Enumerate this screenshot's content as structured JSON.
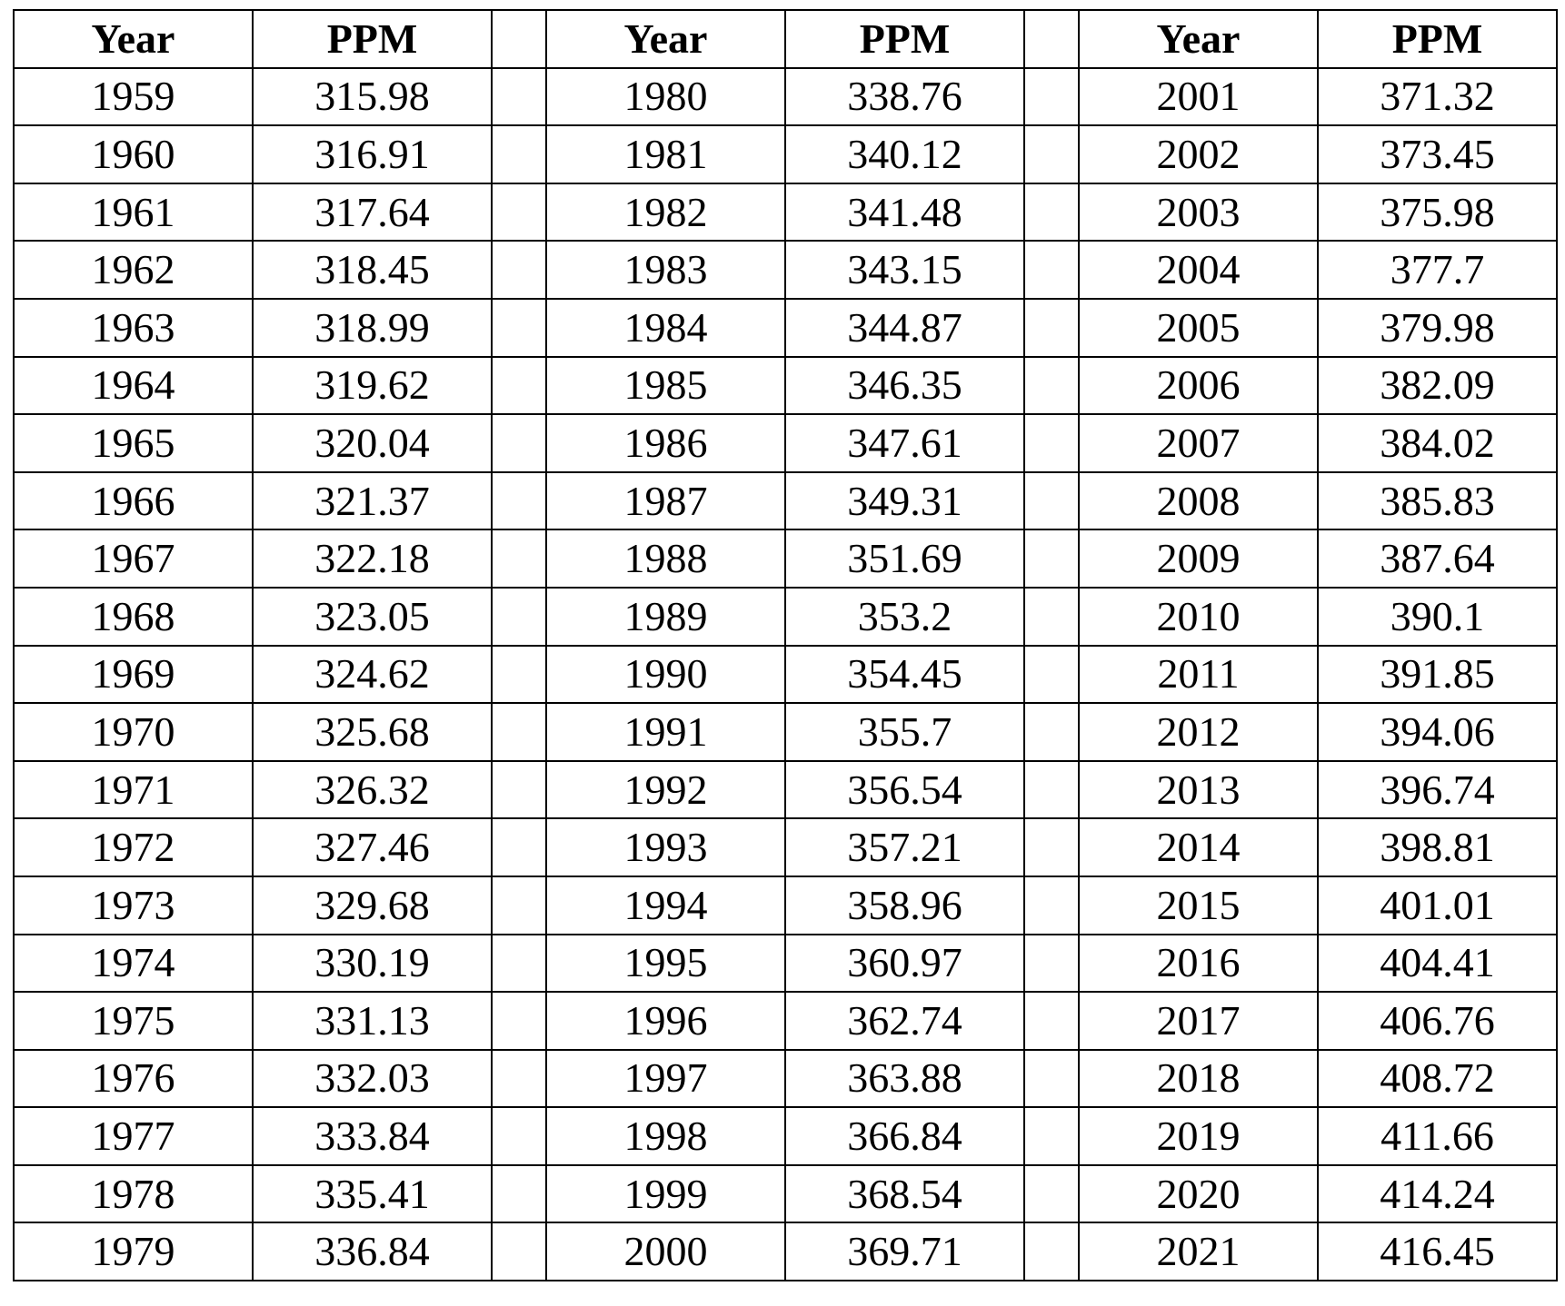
{
  "chart_data": {
    "type": "table",
    "column_groups": [
      {
        "year_header": "Year",
        "ppm_header": "PPM"
      },
      {
        "year_header": "Year",
        "ppm_header": "PPM"
      },
      {
        "year_header": "Year",
        "ppm_header": "PPM"
      }
    ],
    "rows": [
      [
        [
          "1959",
          "315.98"
        ],
        [
          "1980",
          "338.76"
        ],
        [
          "2001",
          "371.32"
        ]
      ],
      [
        [
          "1960",
          "316.91"
        ],
        [
          "1981",
          "340.12"
        ],
        [
          "2002",
          "373.45"
        ]
      ],
      [
        [
          "1961",
          "317.64"
        ],
        [
          "1982",
          "341.48"
        ],
        [
          "2003",
          "375.98"
        ]
      ],
      [
        [
          "1962",
          "318.45"
        ],
        [
          "1983",
          "343.15"
        ],
        [
          "2004",
          "377.7"
        ]
      ],
      [
        [
          "1963",
          "318.99"
        ],
        [
          "1984",
          "344.87"
        ],
        [
          "2005",
          "379.98"
        ]
      ],
      [
        [
          "1964",
          "319.62"
        ],
        [
          "1985",
          "346.35"
        ],
        [
          "2006",
          "382.09"
        ]
      ],
      [
        [
          "1965",
          "320.04"
        ],
        [
          "1986",
          "347.61"
        ],
        [
          "2007",
          "384.02"
        ]
      ],
      [
        [
          "1966",
          "321.37"
        ],
        [
          "1987",
          "349.31"
        ],
        [
          "2008",
          "385.83"
        ]
      ],
      [
        [
          "1967",
          "322.18"
        ],
        [
          "1988",
          "351.69"
        ],
        [
          "2009",
          "387.64"
        ]
      ],
      [
        [
          "1968",
          "323.05"
        ],
        [
          "1989",
          "353.2"
        ],
        [
          "2010",
          "390.1"
        ]
      ],
      [
        [
          "1969",
          "324.62"
        ],
        [
          "1990",
          "354.45"
        ],
        [
          "2011",
          "391.85"
        ]
      ],
      [
        [
          "1970",
          "325.68"
        ],
        [
          "1991",
          "355.7"
        ],
        [
          "2012",
          "394.06"
        ]
      ],
      [
        [
          "1971",
          "326.32"
        ],
        [
          "1992",
          "356.54"
        ],
        [
          "2013",
          "396.74"
        ]
      ],
      [
        [
          "1972",
          "327.46"
        ],
        [
          "1993",
          "357.21"
        ],
        [
          "2014",
          "398.81"
        ]
      ],
      [
        [
          "1973",
          "329.68"
        ],
        [
          "1994",
          "358.96"
        ],
        [
          "2015",
          "401.01"
        ]
      ],
      [
        [
          "1974",
          "330.19"
        ],
        [
          "1995",
          "360.97"
        ],
        [
          "2016",
          "404.41"
        ]
      ],
      [
        [
          "1975",
          "331.13"
        ],
        [
          "1996",
          "362.74"
        ],
        [
          "2017",
          "406.76"
        ]
      ],
      [
        [
          "1976",
          "332.03"
        ],
        [
          "1997",
          "363.88"
        ],
        [
          "2018",
          "408.72"
        ]
      ],
      [
        [
          "1977",
          "333.84"
        ],
        [
          "1998",
          "366.84"
        ],
        [
          "2019",
          "411.66"
        ]
      ],
      [
        [
          "1978",
          "335.41"
        ],
        [
          "1999",
          "368.54"
        ],
        [
          "2020",
          "414.24"
        ]
      ],
      [
        [
          "1979",
          "336.84"
        ],
        [
          "2000",
          "369.71"
        ],
        [
          "2021",
          "416.45"
        ]
      ]
    ]
  }
}
